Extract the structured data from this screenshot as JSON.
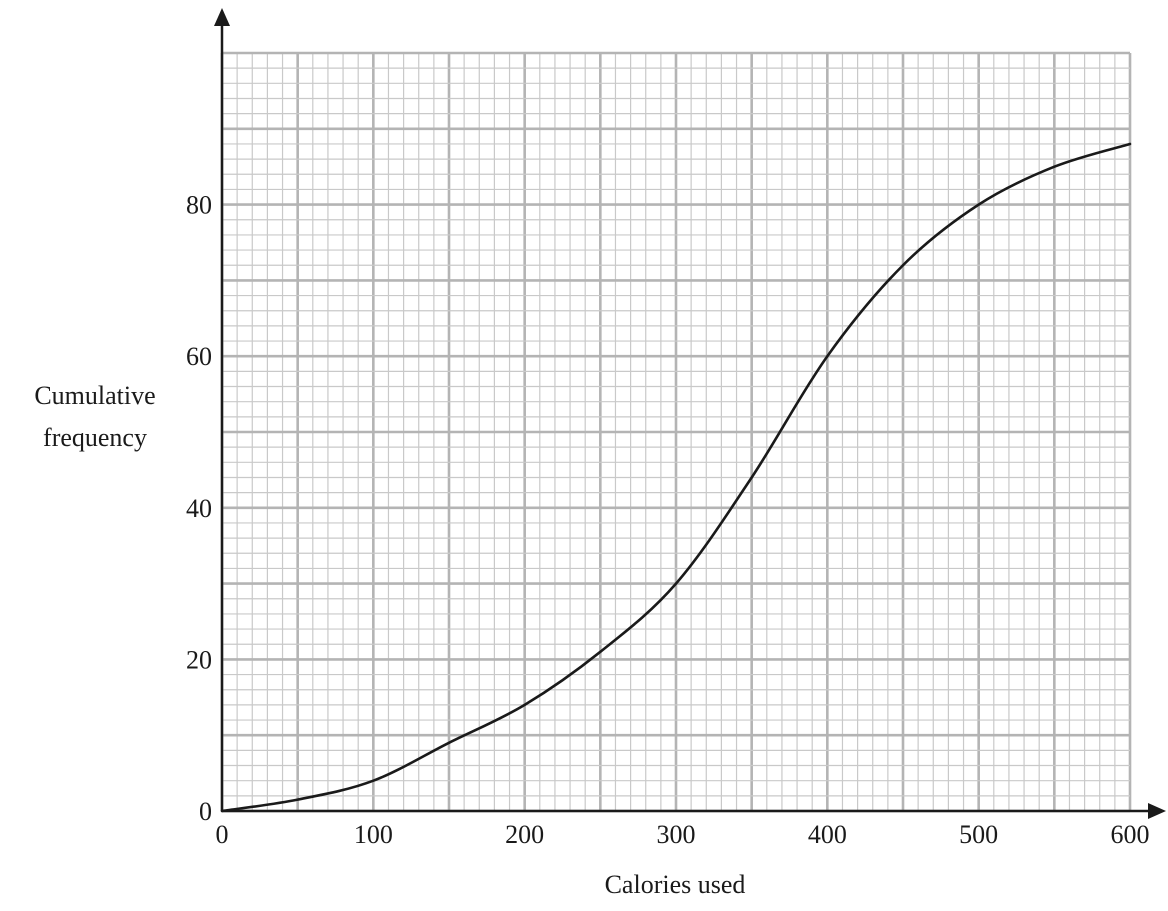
{
  "chart_data": {
    "type": "line",
    "title": "",
    "xlabel": "Calories used",
    "ylabel_lines": [
      "Cumulative",
      "frequency"
    ],
    "xlim": [
      0,
      600
    ],
    "ylim": [
      0,
      100
    ],
    "x_ticks": [
      0,
      100,
      200,
      300,
      400,
      500,
      600
    ],
    "x_tick_labels": [
      "0",
      "100",
      "200",
      "300",
      "400",
      "500",
      "600"
    ],
    "y_ticks": [
      0,
      20,
      40,
      60,
      80
    ],
    "y_tick_labels": [
      "0",
      "20",
      "40",
      "60",
      "80"
    ],
    "grid": true,
    "minor_grid_step_x": 10,
    "minor_grid_step_y": 2,
    "major_grid_step_x": 50,
    "major_grid_step_y": 10,
    "series": [
      {
        "x": [
          0,
          50,
          100,
          150,
          200,
          250,
          300,
          350,
          400,
          450,
          500,
          550,
          600
        ],
        "y": [
          0,
          1.5,
          4,
          9,
          14,
          21,
          30,
          44,
          60,
          72,
          80,
          85,
          88
        ]
      }
    ],
    "colors": {
      "curve": "#1a1a1a",
      "axis": "#1a1a1a",
      "grid_minor": "#c9c9c9",
      "grid_major": "#b4b4b4"
    }
  }
}
